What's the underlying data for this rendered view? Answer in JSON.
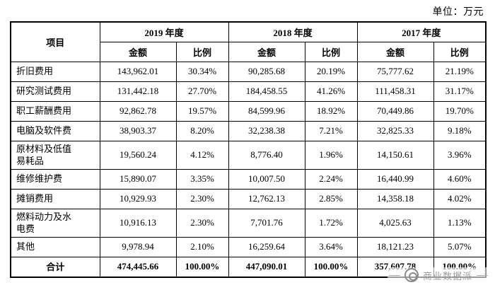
{
  "unit_label": "单位：万元",
  "table": {
    "item_header": "项目",
    "year_groups": [
      {
        "year": "2019 年度",
        "amount_label": "金额",
        "ratio_label": "比例"
      },
      {
        "year": "2018 年度",
        "amount_label": "金额",
        "ratio_label": "比例"
      },
      {
        "year": "2017 年度",
        "amount_label": "金额",
        "ratio_label": "比例"
      }
    ],
    "rows": [
      {
        "item": "折旧费用",
        "values": [
          "143,962.01",
          "30.34%",
          "90,285.68",
          "20.19%",
          "75,777.62",
          "21.19%"
        ]
      },
      {
        "item": "研究测试费用",
        "values": [
          "131,442.18",
          "27.70%",
          "184,458.55",
          "41.26%",
          "111,458.31",
          "31.17%"
        ]
      },
      {
        "item": "职工薪酬费用",
        "values": [
          "92,862.78",
          "19.57%",
          "84,599.96",
          "18.92%",
          "70,449.86",
          "19.70%"
        ]
      },
      {
        "item": "电脑及软件费",
        "values": [
          "38,903.37",
          "8.20%",
          "32,238.38",
          "7.21%",
          "32,825.33",
          "9.18%"
        ]
      },
      {
        "item": "原材料及低值\n易耗品",
        "values": [
          "19,560.24",
          "4.12%",
          "8,776.40",
          "1.96%",
          "14,150.61",
          "3.96%"
        ]
      },
      {
        "item": "维修维护费",
        "values": [
          "15,890.07",
          "3.35%",
          "10,007.50",
          "2.24%",
          "16,440.99",
          "4.60%"
        ]
      },
      {
        "item": "摊销费用",
        "values": [
          "10,929.93",
          "2.30%",
          "12,762.13",
          "2.85%",
          "14,358.18",
          "4.02%"
        ]
      },
      {
        "item": "燃料动力及水\n电费",
        "values": [
          "10,916.13",
          "2.30%",
          "7,701.76",
          "1.72%",
          "4,025.63",
          "1.13%"
        ]
      },
      {
        "item": "其他",
        "values": [
          "9,978.94",
          "2.10%",
          "16,259.64",
          "3.64%",
          "18,121.23",
          "5.07%"
        ]
      }
    ],
    "total_row": {
      "item": "合计",
      "values": [
        "474,445.66",
        "100.00%",
        "447,090.01",
        "100.00%",
        "357,607.78",
        "100.00%"
      ]
    }
  },
  "watermark": {
    "text": "商业数据派"
  }
}
